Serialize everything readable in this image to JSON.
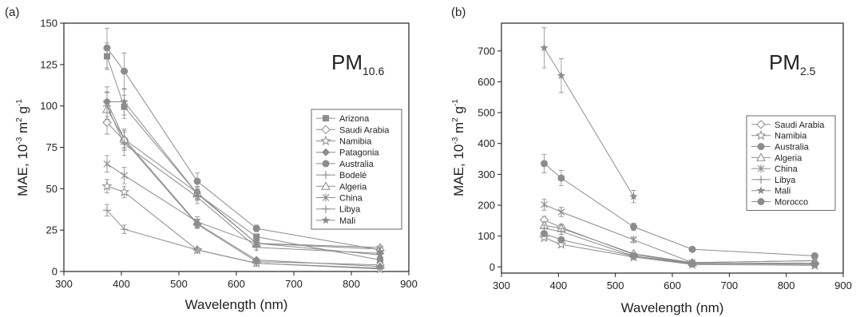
{
  "chart_data": [
    {
      "type": "line",
      "panel_label": "(a)",
      "title_main": "PM",
      "title_sub": "10.6",
      "xlabel": "Wavelength (nm)",
      "ylabel_main": "MAE, 10",
      "ylabel_exp1": "-3",
      "ylabel_mid": " m",
      "ylabel_exp2": "2",
      "ylabel_end": " g",
      "ylabel_exp3": "-1",
      "xlim": [
        300,
        900
      ],
      "ylim": [
        0,
        150
      ],
      "xticks": [
        300,
        400,
        500,
        600,
        700,
        800,
        900
      ],
      "yticks": [
        0,
        25,
        50,
        75,
        100,
        125,
        150
      ],
      "legend_position": "right-middle",
      "series": [
        {
          "name": "Arizona",
          "marker": "square",
          "x": [
            375,
            405,
            532,
            635,
            850
          ],
          "y": [
            130,
            99.5,
            47,
            21,
            7
          ],
          "err": [
            8,
            7,
            3,
            1.5,
            1
          ]
        },
        {
          "name": "Saudi Arabia",
          "marker": "diamond-open",
          "x": [
            375,
            405,
            532,
            635,
            850
          ],
          "y": [
            90,
            79,
            28.5,
            6,
            4
          ],
          "err": [
            7,
            6,
            2.5,
            1,
            0.5
          ]
        },
        {
          "name": "Namibia",
          "marker": "star-open",
          "x": [
            375,
            405,
            532,
            635,
            850
          ],
          "y": [
            51.5,
            48,
            13,
            5,
            1.5
          ],
          "err": [
            4,
            3.5,
            1.5,
            0.8,
            0.5
          ]
        },
        {
          "name": "Patagonia",
          "marker": "diamond",
          "x": [
            375,
            405,
            532,
            635,
            850
          ],
          "y": [
            102.5,
            80,
            29,
            7,
            3
          ],
          "err": [
            6,
            5,
            2.5,
            1,
            0.5
          ]
        },
        {
          "name": "Australia",
          "marker": "circle",
          "x": [
            375,
            405,
            532,
            635,
            850
          ],
          "y": [
            135,
            121,
            54.5,
            26,
            13
          ],
          "err": [
            12,
            11,
            5,
            2,
            1
          ]
        },
        {
          "name": "Bodelé",
          "marker": "plus",
          "x": [
            375,
            405,
            532,
            635,
            850
          ],
          "y": [
            37,
            25.5,
            13,
            5,
            2
          ],
          "err": [
            3.5,
            2.5,
            1,
            0.5,
            0.3
          ]
        },
        {
          "name": "Algeria",
          "marker": "triangle-open",
          "x": [
            375,
            405,
            532,
            635,
            850
          ],
          "y": [
            98,
            80,
            47.5,
            17,
            14.5
          ],
          "err": [
            6,
            6,
            4,
            2,
            1
          ]
        },
        {
          "name": "China",
          "marker": "asterisk",
          "x": [
            375,
            405,
            532,
            635,
            850
          ],
          "y": [
            65,
            58,
            30,
            17,
            13.5
          ],
          "err": [
            5,
            5,
            3,
            1.5,
            1
          ]
        },
        {
          "name": "Libya",
          "marker": "plus",
          "x": [
            375,
            405,
            532,
            635,
            850
          ],
          "y": [
            100,
            77,
            45,
            14.5,
            11
          ],
          "err": [
            8,
            7,
            4,
            1.5,
            1
          ]
        },
        {
          "name": "Mali",
          "marker": "star",
          "x": [
            375,
            405,
            532,
            635,
            850
          ],
          "y": [
            102.5,
            102.5,
            47,
            17,
            10
          ],
          "err": [
            9,
            8,
            4,
            1.5,
            1
          ]
        }
      ]
    },
    {
      "type": "line",
      "panel_label": "(b)",
      "title_main": "PM",
      "title_sub": "2.5",
      "xlabel": "Wavelength (nm)",
      "ylabel_main": "MAE, 10",
      "ylabel_exp1": "-3",
      "ylabel_mid": " m",
      "ylabel_exp2": "2",
      "ylabel_end": " g",
      "ylabel_exp3": "-1",
      "xlim": [
        300,
        900
      ],
      "ylim": [
        -20,
        790
      ],
      "xticks": [
        300,
        400,
        500,
        600,
        700,
        800,
        900
      ],
      "yticks": [
        0,
        100,
        200,
        300,
        400,
        500,
        600,
        700
      ],
      "legend_position": "right-middle",
      "series": [
        {
          "name": "Saudi Arabia",
          "marker": "diamond-open",
          "x": [
            375,
            405,
            532,
            635,
            850
          ],
          "y": [
            152,
            128,
            40,
            12,
            12
          ],
          "err": [
            12,
            10,
            4,
            2,
            2
          ]
        },
        {
          "name": "Namibia",
          "marker": "star-open",
          "x": [
            375,
            405,
            532,
            635,
            850
          ],
          "y": [
            95,
            73,
            32,
            8,
            5
          ],
          "err": [
            8,
            6,
            3,
            1,
            1
          ]
        },
        {
          "name": "Australia",
          "marker": "circle",
          "x": [
            375,
            405,
            532,
            635,
            850
          ],
          "y": [
            335,
            288,
            130,
            57,
            36
          ],
          "err": [
            30,
            25,
            12,
            4,
            3
          ]
        },
        {
          "name": "Algeria",
          "marker": "triangle-open",
          "x": [
            375,
            405,
            532,
            635,
            850
          ],
          "y": [
            135,
            125,
            43,
            14,
            20
          ],
          "err": [
            11,
            10,
            4,
            2,
            2
          ]
        },
        {
          "name": "China",
          "marker": "asterisk",
          "x": [
            375,
            405,
            532,
            635,
            850
          ],
          "y": [
            202,
            178,
            88,
            14,
            20
          ],
          "err": [
            18,
            15,
            8,
            2,
            2
          ]
        },
        {
          "name": "Libya",
          "marker": "plus",
          "x": [
            375,
            405,
            532,
            635,
            850
          ],
          "y": [
            125,
            115,
            35,
            10,
            12
          ],
          "err": [
            10,
            9,
            3,
            1,
            1
          ]
        },
        {
          "name": "Mali",
          "marker": "star",
          "x": [
            375,
            405,
            532
          ],
          "y": [
            710,
            620,
            228
          ],
          "err": [
            65,
            55,
            20
          ]
        },
        {
          "name": "Morocco",
          "marker": "circle",
          "x": [
            375,
            405,
            532,
            635,
            850
          ],
          "y": [
            108,
            88,
            35,
            12,
            8
          ],
          "err": [
            9,
            7,
            3,
            1,
            1
          ]
        }
      ]
    }
  ],
  "colors": {
    "line": "#8c8c8c",
    "marker": "#8c8c8c",
    "axis": "#222222",
    "text": "#222222"
  }
}
